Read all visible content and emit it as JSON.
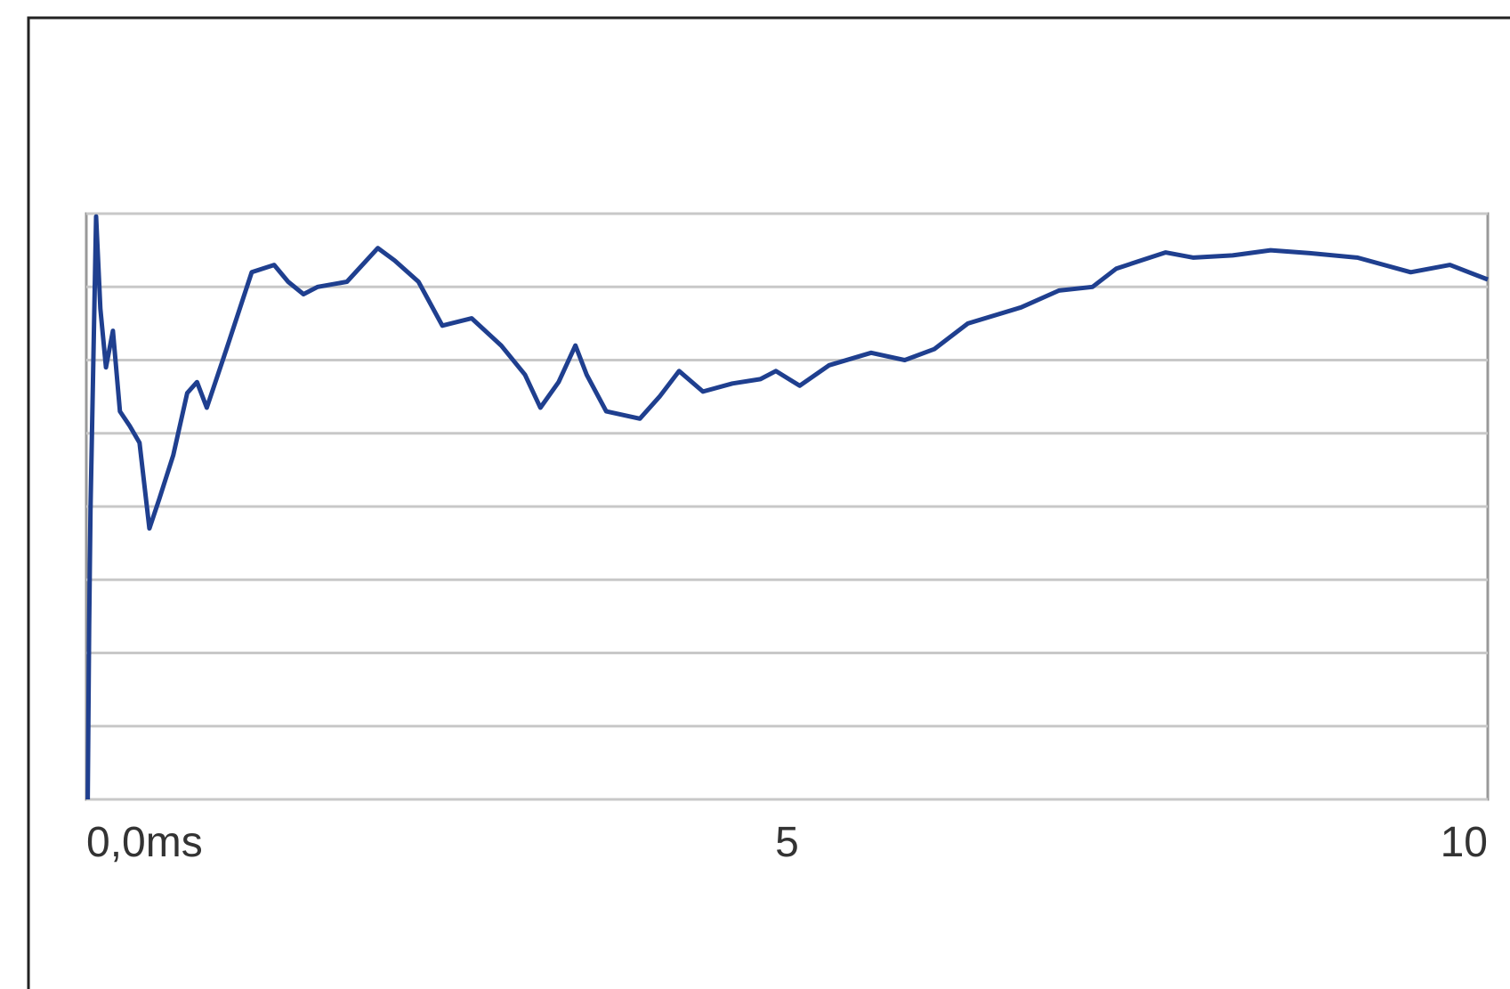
{
  "chart_data": {
    "type": "line",
    "x": [
      0.01,
      0.02,
      0.03,
      0.07,
      0.1,
      0.14,
      0.19,
      0.24,
      0.31,
      0.38,
      0.45,
      0.52,
      0.62,
      0.72,
      0.79,
      0.86,
      1.0,
      1.18,
      1.34,
      1.44,
      1.55,
      1.65,
      1.86,
      2.08,
      2.2,
      2.37,
      2.54,
      2.75,
      2.96,
      3.13,
      3.24,
      3.37,
      3.49,
      3.57,
      3.71,
      3.95,
      4.09,
      4.23,
      4.4,
      4.61,
      4.81,
      4.92,
      5.09,
      5.3,
      5.6,
      5.84,
      6.05,
      6.29,
      6.67,
      6.94,
      7.18,
      7.35,
      7.7,
      7.9,
      8.18,
      8.45,
      8.73,
      9.07,
      9.45,
      9.73,
      10.0
    ],
    "series": [
      {
        "color": "#1f3f8f",
        "values": [
          0,
          2.37,
          3.95,
          7.96,
          6.7,
          5.9,
          6.4,
          5.3,
          5.1,
          4.87,
          3.7,
          4.1,
          4.7,
          5.55,
          5.7,
          5.35,
          6.15,
          7.2,
          7.3,
          7.07,
          6.9,
          7.0,
          7.07,
          7.53,
          7.36,
          7.07,
          6.47,
          6.57,
          6.2,
          5.8,
          5.35,
          5.7,
          6.2,
          5.8,
          5.3,
          5.2,
          5.5,
          5.85,
          5.57,
          5.68,
          5.74,
          5.85,
          5.65,
          5.93,
          6.1,
          6.0,
          6.15,
          6.5,
          6.72,
          6.95,
          7.0,
          7.25,
          7.47,
          7.4,
          7.43,
          7.5,
          7.46,
          7.4,
          7.2,
          7.3,
          7.1
        ]
      }
    ],
    "xlim": [
      0,
      10
    ],
    "xticks": [
      {
        "value": 0,
        "label": "0,0ms"
      },
      5,
      10
    ],
    "ylim": [
      0,
      8
    ],
    "yticks": [
      0,
      1,
      2,
      3,
      4,
      5,
      6,
      7,
      8
    ],
    "grid": true
  }
}
